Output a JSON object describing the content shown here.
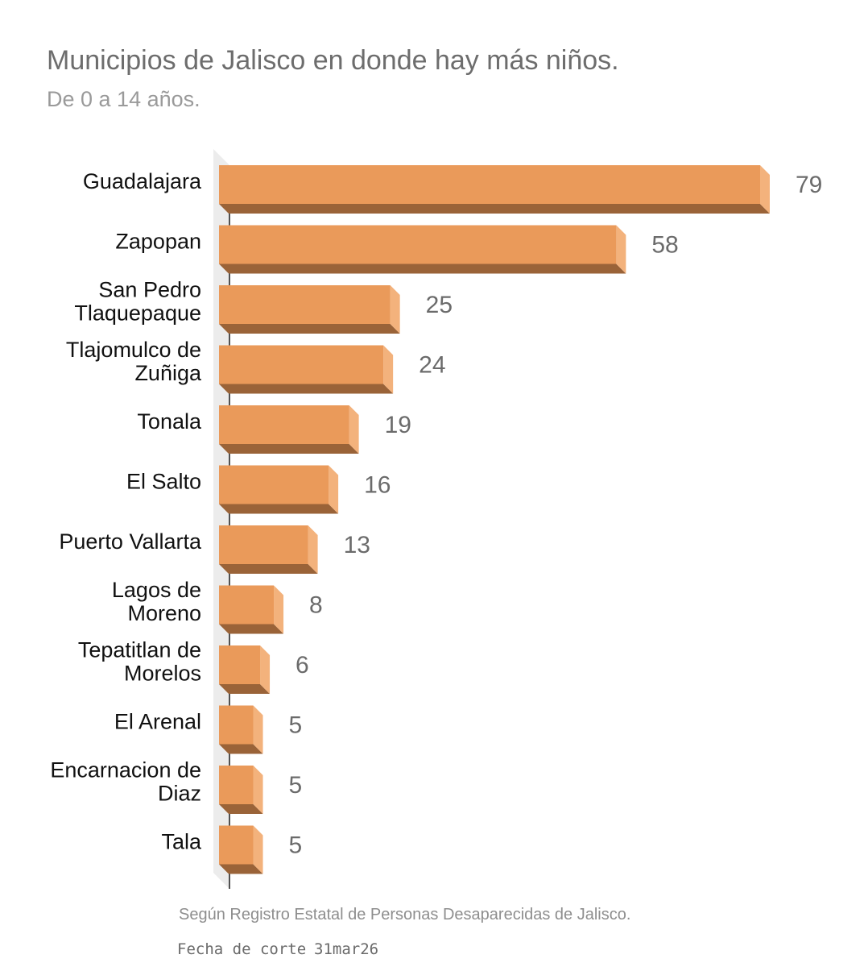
{
  "chart_data": {
    "type": "bar",
    "orientation": "horizontal",
    "title": "Municipios de Jalisco en donde hay más niños.",
    "subtitle": "De 0 a 14 años.",
    "categories": [
      [
        "Guadalajara"
      ],
      [
        "Zapopan"
      ],
      [
        "San Pedro",
        "Tlaquepaque"
      ],
      [
        "Tlajomulco de",
        "Zuñiga"
      ],
      [
        "Tonala"
      ],
      [
        "El Salto"
      ],
      [
        "Puerto Vallarta"
      ],
      [
        "Lagos de",
        "Moreno"
      ],
      [
        "Tepatitlan de",
        "Morelos"
      ],
      [
        "El Arenal"
      ],
      [
        "Encarnacion de",
        "Diaz"
      ],
      [
        "Tala"
      ]
    ],
    "values": [
      79,
      58,
      25,
      24,
      19,
      16,
      13,
      8,
      6,
      5,
      5,
      5
    ],
    "xlim": [
      0,
      79
    ],
    "grid": false,
    "legend": "none",
    "colors": {
      "bar_front": "#ea9a5a",
      "bar_side": "#f3b27c",
      "bar_bottom": "#9a6338"
    }
  },
  "footer": {
    "source": "Según Registro Estatal de Personas Desaparecidas de Jalisco.",
    "cutoff_label": "Fecha de corte",
    "cutoff_date": "31mar26"
  }
}
